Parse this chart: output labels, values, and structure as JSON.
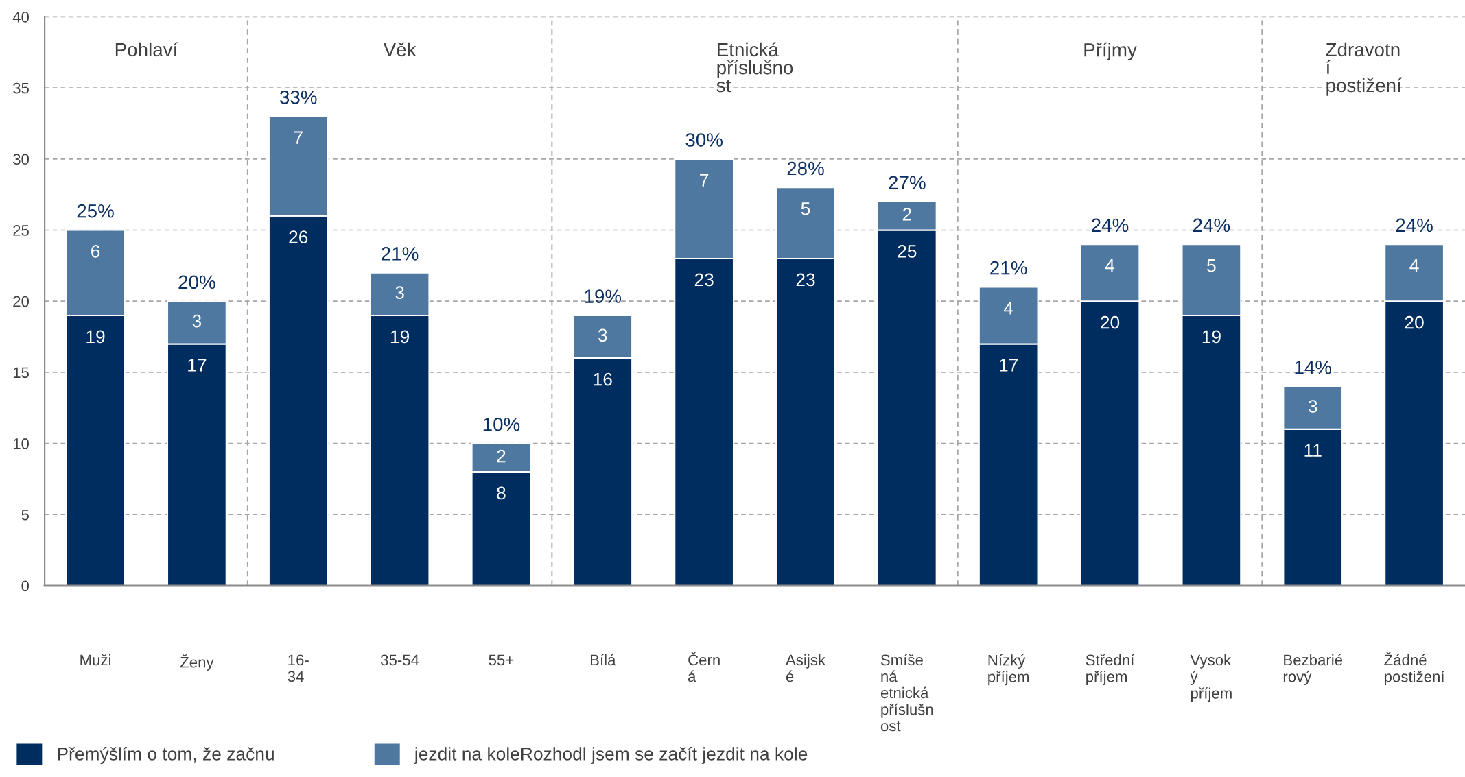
{
  "chart_data": {
    "type": "bar",
    "stacked": true,
    "categories": [
      "Muži",
      "Ženy",
      "16-\n34",
      "35-54",
      "55+",
      "Bílá",
      "Čern\ná",
      "Asijsk\né",
      "Smíše\nná\netnická\npříslušn\nost",
      "Nízký\npříjem",
      "Střední\npříjem",
      "Vysok\ný\npříjem",
      "Bezbarié\nrový",
      "Žádné\npostižení"
    ],
    "series": [
      {
        "name": "Přemýšlím o tom, že začnu",
        "color": "#002d5f",
        "values": [
          19,
          17,
          26,
          19,
          8,
          16,
          23,
          23,
          25,
          17,
          20,
          19,
          11,
          20
        ]
      },
      {
        "name": "jezdit na koleRozhodl jsem se začít jezdit na kole",
        "color": "#4e78a0",
        "values": [
          6,
          3,
          7,
          3,
          2,
          3,
          7,
          5,
          2,
          4,
          4,
          5,
          3,
          4
        ]
      }
    ],
    "ylim": [
      0,
      40
    ],
    "yticks": [
      0,
      5,
      10,
      15,
      20,
      25,
      30,
      35,
      40
    ],
    "grid": "y",
    "data_labels": true,
    "totals": [
      "25%",
      "20%",
      "33%",
      "21%",
      "10%",
      "19%",
      "30%",
      "28%",
      "27%",
      "21%",
      "24%",
      "24%",
      "14%",
      "24%"
    ],
    "annotations": [
      "Pohlaví",
      "Věk",
      "Etnická\npříslušno\nst",
      "Příjmy",
      "Zdravotn\ní\npostižení"
    ],
    "legend": "bottom left"
  }
}
